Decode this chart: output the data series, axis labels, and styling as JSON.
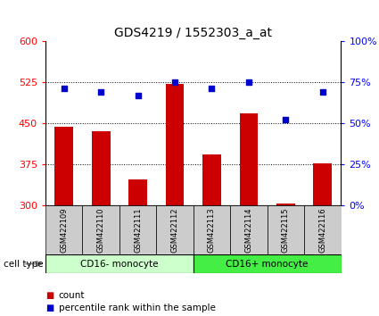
{
  "title": "GDS4219 / 1552303_a_at",
  "samples": [
    "GSM422109",
    "GSM422110",
    "GSM422111",
    "GSM422112",
    "GSM422113",
    "GSM422114",
    "GSM422115",
    "GSM422116"
  ],
  "counts": [
    443,
    435,
    348,
    521,
    393,
    468,
    304,
    376
  ],
  "percentiles": [
    71,
    69,
    67,
    75,
    71,
    75,
    52,
    69
  ],
  "ylim_left": [
    300,
    600
  ],
  "ylim_right": [
    0,
    100
  ],
  "yticks_left": [
    300,
    375,
    450,
    525,
    600
  ],
  "yticks_right": [
    0,
    25,
    50,
    75,
    100
  ],
  "ytick_labels_right": [
    "0%",
    "25%",
    "50%",
    "75%",
    "100%"
  ],
  "bar_color": "#cc0000",
  "dot_color": "#0000cc",
  "group1_label": "CD16- monocyte",
  "group2_label": "CD16+ monocyte",
  "group1_indices": [
    0,
    1,
    2,
    3
  ],
  "group2_indices": [
    4,
    5,
    6,
    7
  ],
  "group1_bg": "#ccffcc",
  "group2_bg": "#44ee44",
  "sample_bg": "#cccccc",
  "legend_count_label": "count",
  "legend_pct_label": "percentile rank within the sample",
  "cell_type_label": "cell type"
}
